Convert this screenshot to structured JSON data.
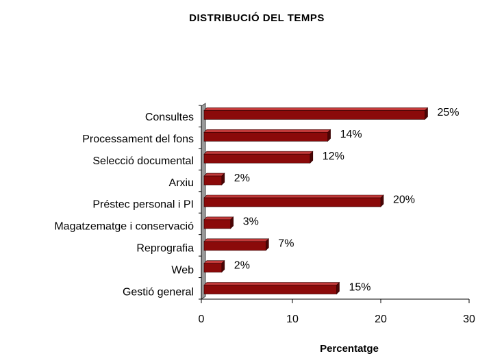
{
  "chart_data": {
    "type": "bar",
    "orientation": "horizontal",
    "title": "DISTRIBUCIÓ  DEL  TEMPS",
    "x_label": "Percentatge",
    "categories": [
      "Consultes",
      "Processament del fons",
      "Selecció documental",
      "Arxiu",
      "Préstec personal i PI",
      "Magatzematge i conservació",
      "Reprografia",
      "Web",
      "Gestió general"
    ],
    "values": [
      25,
      14,
      12,
      2,
      20,
      3,
      7,
      2,
      15
    ],
    "value_labels": [
      "25%",
      "14%",
      "12%",
      "2%",
      "20%",
      "3%",
      "7%",
      "2%",
      "15%"
    ],
    "color": "#8b0a0a",
    "xlim": [
      0,
      30
    ],
    "xticks": [
      0,
      10,
      20,
      30
    ]
  }
}
